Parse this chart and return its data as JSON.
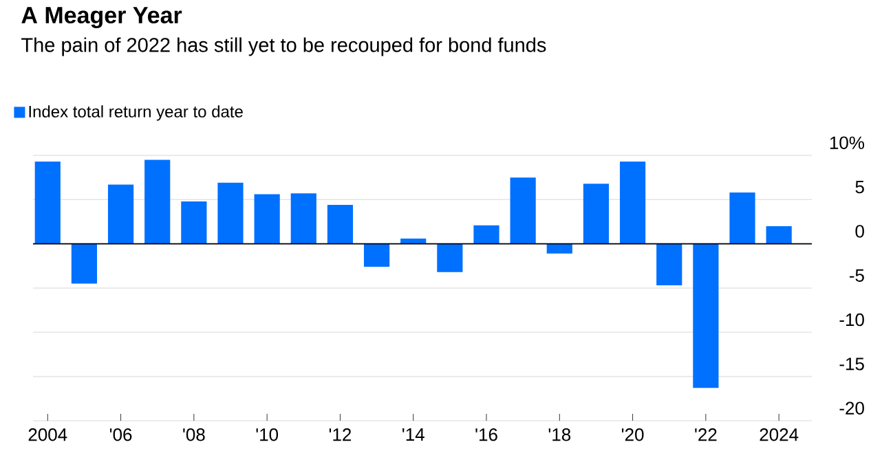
{
  "chart_data": {
    "type": "bar",
    "title": "A Meager Year",
    "subtitle": "The pain of 2022 has still yet to be recouped for bond funds",
    "categories": [
      "2004",
      null,
      "'06",
      null,
      "'08",
      null,
      "'10",
      null,
      "'12",
      null,
      "'14",
      null,
      "'16",
      null,
      "'18",
      null,
      "'20",
      null,
      "'22",
      null,
      "2024"
    ],
    "series": [
      {
        "name": "Index total return year to date",
        "color": "#0070ff",
        "values": [
          9.3,
          -4.5,
          6.7,
          9.5,
          4.8,
          6.9,
          5.6,
          5.7,
          4.4,
          -2.6,
          0.6,
          -3.2,
          2.1,
          7.5,
          -1.1,
          6.8,
          9.3,
          -4.7,
          -16.3,
          5.8,
          2.0
        ]
      }
    ],
    "ylim": [
      -20,
      10
    ],
    "yticks": [
      {
        "value": 10,
        "label": "10%"
      },
      5,
      0,
      -5,
      -10,
      -15,
      -20
    ],
    "grid": "y",
    "legend": "top left"
  }
}
